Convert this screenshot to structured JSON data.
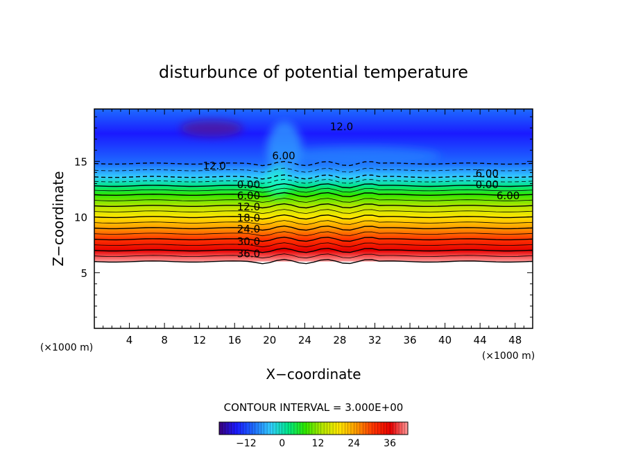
{
  "chart_data": {
    "type": "heatmap",
    "title": "disturbunce of potential temperature",
    "xlabel": "X−coordinate",
    "ylabel": "Z−coordinate",
    "x_unit": "(×1000 m)",
    "xlim": [
      0,
      50
    ],
    "ylim": [
      0,
      19.7
    ],
    "x_ticks": [
      4,
      8,
      12,
      16,
      20,
      24,
      28,
      32,
      36,
      40,
      44,
      48
    ],
    "y_ticks": [
      5,
      10,
      15
    ],
    "contour_interval_text": "CONTOUR INTERVAL = 3.000E+00",
    "colorbar": {
      "min": -21,
      "max": 42,
      "ticks": [
        -12,
        0,
        12,
        24,
        36
      ]
    },
    "colors": [
      "#3a007a",
      "#1a1aff",
      "#1e6bff",
      "#33ccff",
      "#00e68a",
      "#2ee600",
      "#b3e600",
      "#ffe600",
      "#ff9900",
      "#ff3300",
      "#e60000",
      "#ff9999"
    ],
    "field_profile": [
      {
        "z": 6.0,
        "value": 42
      },
      {
        "z": 7.0,
        "value": 36
      },
      {
        "z": 8.0,
        "value": 30
      },
      {
        "z": 9.0,
        "value": 24
      },
      {
        "z": 10.0,
        "value": 18
      },
      {
        "z": 11.0,
        "value": 12
      },
      {
        "z": 12.0,
        "value": 6
      },
      {
        "z": 12.8,
        "value": 0
      },
      {
        "z": 13.6,
        "value": -6
      },
      {
        "z": 14.8,
        "value": -12
      },
      {
        "z": 17.5,
        "value": -15
      },
      {
        "z": 19.7,
        "value": -12
      }
    ],
    "contour_labels": [
      {
        "text": "12.0",
        "x": 13.7,
        "z": 14.6
      },
      {
        "text": "12.0",
        "x": 28.2,
        "z": 18.1
      },
      {
        "text": "6.00",
        "x": 21.6,
        "z": 15.5
      },
      {
        "text": "6.00",
        "x": 44.8,
        "z": 13.9
      },
      {
        "text": "0.00",
        "x": 17.6,
        "z": 12.9
      },
      {
        "text": "0.00",
        "x": 44.8,
        "z": 12.9
      },
      {
        "text": "6.00",
        "x": 17.6,
        "z": 11.9
      },
      {
        "text": "6.00",
        "x": 47.2,
        "z": 11.9
      },
      {
        "text": "12.0",
        "x": 17.6,
        "z": 10.9
      },
      {
        "text": "18.0",
        "x": 17.6,
        "z": 9.9
      },
      {
        "text": "24.0",
        "x": 17.6,
        "z": 8.9
      },
      {
        "text": "30.0",
        "x": 17.6,
        "z": 7.8
      },
      {
        "text": "36.0",
        "x": 17.6,
        "z": 6.7
      }
    ]
  }
}
